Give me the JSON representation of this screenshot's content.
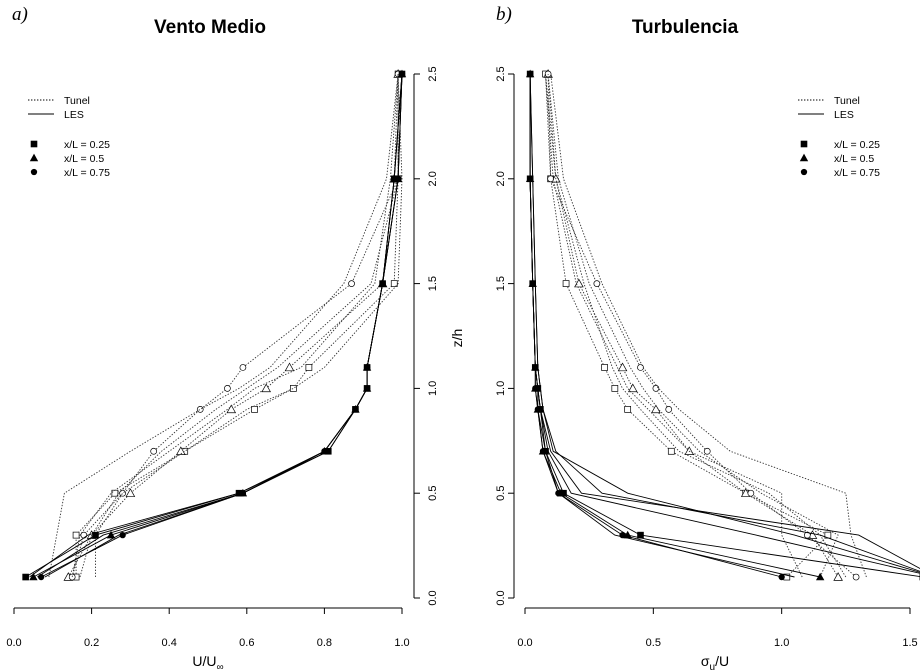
{
  "chart_data": [
    {
      "type": "line",
      "panel_label": "a)",
      "title": "Vento Medio",
      "xlabel": "U/U∞",
      "ylabel": "z/h",
      "xlim": [
        0.0,
        1.0
      ],
      "ylim": [
        0.0,
        2.5
      ],
      "xticks": [
        "0.0",
        "0.2",
        "0.4",
        "0.6",
        "0.8",
        "1.0"
      ],
      "yticks": [
        "0.0",
        "0.5",
        "1.0",
        "1.5",
        "2.0",
        "2.5"
      ],
      "y_axis_side": "right",
      "legend_position": "top-left",
      "legend": {
        "lines": [
          {
            "label": "Tunel",
            "style": "dotted"
          },
          {
            "label": "LES",
            "style": "solid"
          }
        ],
        "markers": [
          {
            "label": "x/L = 0.25",
            "shape": "square"
          },
          {
            "label": "x/L = 0.5",
            "shape": "triangle"
          },
          {
            "label": "x/L = 0.75",
            "shape": "circle"
          }
        ]
      },
      "series": [
        {
          "group": "Tunel",
          "marker": "square",
          "z": [
            0.1,
            0.3,
            0.5,
            0.7,
            0.9,
            1.0,
            1.1,
            1.5,
            2.0,
            2.5
          ],
          "u": [
            0.16,
            0.16,
            0.26,
            0.44,
            0.62,
            0.72,
            0.76,
            0.98,
            0.99,
            0.99
          ]
        },
        {
          "group": "Tunel",
          "marker": "triangle",
          "z": [
            0.1,
            0.3,
            0.5,
            0.7,
            0.9,
            1.0,
            1.1,
            1.5,
            2.0,
            2.5
          ],
          "u": [
            0.14,
            0.2,
            0.3,
            0.43,
            0.56,
            0.65,
            0.71,
            0.95,
            0.98,
            0.99
          ]
        },
        {
          "group": "Tunel",
          "marker": "circle",
          "z": [
            0.1,
            0.3,
            0.5,
            0.7,
            0.9,
            1.0,
            1.1,
            1.5,
            2.0,
            2.5
          ],
          "u": [
            0.15,
            0.18,
            0.28,
            0.36,
            0.48,
            0.55,
            0.59,
            0.87,
            0.99,
            0.99
          ]
        },
        {
          "group": "Tunel",
          "marker": "none",
          "z": [
            0.1,
            0.3,
            0.5,
            0.7,
            0.9,
            1.0,
            1.1,
            1.5,
            2.0,
            2.5
          ],
          "u": [
            0.09,
            0.11,
            0.13,
            0.3,
            0.48,
            0.58,
            0.66,
            0.85,
            0.96,
            0.99
          ]
        },
        {
          "group": "Tunel",
          "marker": "none",
          "z": [
            0.1,
            0.3,
            0.5,
            0.7,
            0.9,
            1.0,
            1.1,
            1.5,
            2.0,
            2.5
          ],
          "u": [
            0.21,
            0.21,
            0.28,
            0.44,
            0.6,
            0.72,
            0.8,
            0.99,
            1.0,
            0.99
          ]
        },
        {
          "group": "Tunel",
          "marker": "none",
          "z": [
            0.1,
            0.3,
            0.5,
            0.7,
            0.9,
            1.0,
            1.1,
            1.5,
            2.0,
            2.5
          ],
          "u": [
            0.17,
            0.2,
            0.27,
            0.38,
            0.52,
            0.6,
            0.68,
            0.92,
            0.99,
            1.0
          ]
        },
        {
          "group": "Tunel",
          "marker": "none",
          "z": [
            0.1,
            0.3,
            0.5,
            0.7,
            0.9,
            1.0,
            1.1,
            1.5,
            2.0,
            2.5
          ],
          "u": [
            0.15,
            0.17,
            0.25,
            0.4,
            0.55,
            0.62,
            0.74,
            0.93,
            0.97,
            0.99
          ]
        },
        {
          "group": "LES",
          "marker": "square",
          "z": [
            0.1,
            0.3,
            0.5,
            0.7,
            0.9,
            1.0,
            1.1,
            1.5,
            2.0,
            2.5
          ],
          "u": [
            0.03,
            0.21,
            0.58,
            0.81,
            0.88,
            0.91,
            0.91,
            0.95,
            0.98,
            1.0
          ]
        },
        {
          "group": "LES",
          "marker": "triangle",
          "z": [
            0.1,
            0.3,
            0.5,
            0.7,
            0.9,
            1.0,
            1.1,
            1.5,
            2.0,
            2.5
          ],
          "u": [
            0.05,
            0.25,
            0.59,
            0.8,
            0.88,
            0.91,
            0.91,
            0.95,
            0.99,
            1.0
          ]
        },
        {
          "group": "LES",
          "marker": "circle",
          "z": [
            0.1,
            0.3,
            0.5,
            0.7,
            0.9,
            1.0,
            1.1,
            1.5,
            2.0,
            2.5
          ],
          "u": [
            0.07,
            0.28,
            0.59,
            0.8,
            0.88,
            0.91,
            0.91,
            0.95,
            0.99,
            1.0
          ]
        },
        {
          "group": "LES",
          "marker": "none",
          "z": [
            0.1,
            0.3,
            0.5,
            0.7,
            0.9,
            1.0,
            1.1,
            1.5,
            2.0,
            2.5
          ],
          "u": [
            0.04,
            0.19,
            0.58,
            0.8,
            0.88,
            0.91,
            0.91,
            0.95,
            0.98,
            1.0
          ]
        },
        {
          "group": "LES",
          "marker": "none",
          "z": [
            0.1,
            0.3,
            0.5,
            0.7,
            0.9,
            1.0,
            1.1,
            1.5,
            2.0,
            2.5
          ],
          "u": [
            0.06,
            0.23,
            0.59,
            0.81,
            0.88,
            0.91,
            0.91,
            0.95,
            0.98,
            1.0
          ]
        },
        {
          "group": "LES",
          "marker": "none",
          "z": [
            0.1,
            0.3,
            0.5,
            0.7,
            0.9,
            1.0,
            1.1,
            1.5,
            2.0,
            2.5
          ],
          "u": [
            0.08,
            0.27,
            0.59,
            0.8,
            0.88,
            0.91,
            0.91,
            0.95,
            0.99,
            1.0
          ]
        }
      ]
    },
    {
      "type": "line",
      "panel_label": "b)",
      "title": "Turbulencia",
      "xlabel": "σu/U",
      "ylabel": "",
      "xlim": [
        0.0,
        1.5
      ],
      "ylim": [
        0.0,
        2.5
      ],
      "xticks": [
        "0.0",
        "0.5",
        "1.0",
        "1.5"
      ],
      "yticks": [
        "0.0",
        "0.5",
        "1.0",
        "1.5",
        "2.0",
        "2.5"
      ],
      "y_axis_side": "left",
      "legend_position": "top-right",
      "legend": {
        "lines": [
          {
            "label": "Tunel",
            "style": "dotted"
          },
          {
            "label": "LES",
            "style": "solid"
          }
        ],
        "markers": [
          {
            "label": "x/L = 0.25",
            "shape": "square"
          },
          {
            "label": "x/L = 0.5",
            "shape": "triangle"
          },
          {
            "label": "x/L = 0.75",
            "shape": "circle"
          }
        ]
      },
      "series": [
        {
          "group": "Tunel",
          "marker": "square",
          "z": [
            0.1,
            0.3,
            0.5,
            0.7,
            0.9,
            1.0,
            1.1,
            1.5,
            2.0,
            2.5
          ],
          "u": [
            1.02,
            1.18,
            0.86,
            0.57,
            0.4,
            0.35,
            0.31,
            0.16,
            0.1,
            0.08
          ]
        },
        {
          "group": "Tunel",
          "marker": "triangle",
          "z": [
            0.1,
            0.3,
            0.5,
            0.7,
            0.9,
            1.0,
            1.1,
            1.5,
            2.0,
            2.5
          ],
          "u": [
            1.22,
            1.12,
            0.86,
            0.64,
            0.51,
            0.42,
            0.38,
            0.21,
            0.12,
            0.09
          ]
        },
        {
          "group": "Tunel",
          "marker": "circle",
          "z": [
            0.1,
            0.3,
            0.5,
            0.7,
            0.9,
            1.0,
            1.1,
            1.5,
            2.0,
            2.5
          ],
          "u": [
            1.29,
            1.1,
            0.88,
            0.71,
            0.56,
            0.51,
            0.45,
            0.28,
            0.1,
            0.09
          ]
        },
        {
          "group": "Tunel",
          "marker": "none",
          "z": [
            0.1,
            0.3,
            0.5,
            0.7,
            0.9,
            1.0,
            1.1,
            1.5,
            2.0,
            2.5
          ],
          "u": [
            1.33,
            1.27,
            1.25,
            0.8,
            0.6,
            0.52,
            0.46,
            0.3,
            0.15,
            0.1
          ]
        },
        {
          "group": "Tunel",
          "marker": "none",
          "z": [
            0.1,
            0.3,
            0.5,
            0.7,
            0.9,
            1.0,
            1.1,
            1.5,
            2.0,
            2.5
          ],
          "u": [
            1.08,
            1.0,
            1.0,
            0.64,
            0.48,
            0.4,
            0.36,
            0.2,
            0.11,
            0.08
          ]
        },
        {
          "group": "Tunel",
          "marker": "none",
          "z": [
            0.1,
            0.3,
            0.5,
            0.7,
            0.9,
            1.0,
            1.1,
            1.5,
            2.0,
            2.5
          ],
          "u": [
            1.15,
            1.22,
            0.92,
            0.68,
            0.52,
            0.46,
            0.41,
            0.25,
            0.13,
            0.09
          ]
        },
        {
          "group": "Tunel",
          "marker": "none",
          "z": [
            0.1,
            0.3,
            0.5,
            0.7,
            0.9,
            1.0,
            1.1,
            1.5,
            2.0,
            2.5
          ],
          "u": [
            1.25,
            1.15,
            0.95,
            0.6,
            0.45,
            0.38,
            0.34,
            0.23,
            0.12,
            0.08
          ]
        },
        {
          "group": "LES",
          "marker": "square",
          "z": [
            0.1,
            0.3,
            0.5,
            0.7,
            0.9,
            1.0,
            1.1,
            1.5,
            2.0,
            2.5
          ],
          "u": [
            1.55,
            0.45,
            0.15,
            0.08,
            0.06,
            0.05,
            0.04,
            0.03,
            0.02,
            0.02
          ]
        },
        {
          "group": "LES",
          "marker": "triangle",
          "z": [
            0.1,
            0.3,
            0.5,
            0.7,
            0.9,
            1.0,
            1.1,
            1.5,
            2.0,
            2.5
          ],
          "u": [
            1.15,
            0.4,
            0.14,
            0.07,
            0.05,
            0.04,
            0.04,
            0.03,
            0.02,
            0.02
          ]
        },
        {
          "group": "LES",
          "marker": "circle",
          "z": [
            0.1,
            0.3,
            0.5,
            0.7,
            0.9,
            1.0,
            1.1,
            1.5,
            2.0,
            2.5
          ],
          "u": [
            1.0,
            0.38,
            0.13,
            0.07,
            0.05,
            0.04,
            0.04,
            0.03,
            0.02,
            0.02
          ]
        },
        {
          "group": "LES",
          "marker": "none",
          "z": [
            0.1,
            0.3,
            0.5,
            0.7,
            0.9,
            1.0,
            1.1,
            1.5,
            2.0,
            2.5
          ],
          "u": [
            1.6,
            1.15,
            0.3,
            0.12,
            0.07,
            0.06,
            0.05,
            0.04,
            0.03,
            0.02
          ]
        },
        {
          "group": "LES",
          "marker": "none",
          "z": [
            0.1,
            0.3,
            0.5,
            0.7,
            0.9,
            1.0,
            1.1,
            1.5,
            2.0,
            2.5
          ],
          "u": [
            1.6,
            1.3,
            0.22,
            0.1,
            0.06,
            0.05,
            0.04,
            0.03,
            0.02,
            0.02
          ]
        },
        {
          "group": "LES",
          "marker": "none",
          "z": [
            0.1,
            0.3,
            0.5,
            0.7,
            0.9,
            1.0,
            1.1,
            1.5,
            2.0,
            2.5
          ],
          "u": [
            1.6,
            0.9,
            0.18,
            0.09,
            0.06,
            0.05,
            0.04,
            0.03,
            0.02,
            0.02
          ]
        },
        {
          "group": "LES",
          "marker": "none",
          "z": [
            0.1,
            0.3,
            0.5,
            0.7,
            0.9,
            1.0,
            1.1,
            1.5,
            2.0,
            2.5
          ],
          "u": [
            1.05,
            0.35,
            0.13,
            0.08,
            0.05,
            0.05,
            0.04,
            0.03,
            0.02,
            0.02
          ]
        },
        {
          "group": "LES",
          "marker": "none",
          "z": [
            0.1,
            0.3,
            0.5,
            0.7,
            0.9,
            1.0,
            1.1,
            1.5,
            2.0,
            2.5
          ],
          "u": [
            1.6,
            1.05,
            0.4,
            0.11,
            0.07,
            0.06,
            0.05,
            0.04,
            0.03,
            0.02
          ]
        }
      ]
    }
  ]
}
